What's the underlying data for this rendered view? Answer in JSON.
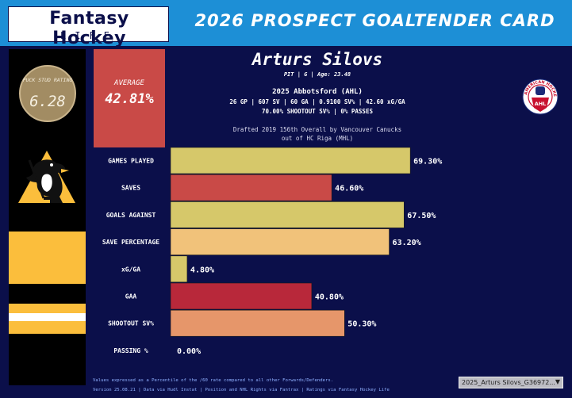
{
  "header": {
    "logo_top": "Fantasy Hockey",
    "logo_bottom": "LIFE",
    "title": "2026 PROSPECT GOALTENDER CARD"
  },
  "rating": {
    "label": "PUCK STUD RATING",
    "value": "6.28",
    "color": "#a28c63"
  },
  "average": {
    "label": "AVERAGE",
    "value": "42.81%",
    "color": "#c94a47"
  },
  "player": {
    "name": "Arturs Silovs",
    "meta": "PIT | G | Age: 23.48",
    "season_title": "2025 Abbotsford (AHL)",
    "season_line_1": "26 GP | 607 SV | 60 GA | 0.9100 SV% | 42.60 xG/GA",
    "season_line_2": "70.00% SHOOTOUT SV% | 0% PASSES",
    "draft_line_1": "Drafted 2019 156th Overall by Vancouver Canucks",
    "draft_line_2": "out of HC Riga (MHL)"
  },
  "team": {
    "logo_icon": "penguins-logo-icon",
    "primary_color": "#fbbe3c",
    "secondary_color": "#000000"
  },
  "league": {
    "logo_icon": "ahl-logo-icon",
    "ring_text": "AMERICAN HOCKEY LEAGUE",
    "badge": "AHL"
  },
  "chart_data": {
    "type": "bar",
    "orientation": "horizontal",
    "categories": [
      "GAMES PLAYED",
      "SAVES",
      "GOALS AGAINST",
      "SAVE PERCENTAGE",
      "xG/GA",
      "GAA",
      "SHOOTOUT SV%",
      "PASSING %"
    ],
    "values": [
      69.3,
      46.6,
      67.5,
      63.2,
      4.8,
      40.8,
      50.3,
      0.0
    ],
    "labels": [
      "69.30%",
      "46.60%",
      "67.50%",
      "63.20%",
      "4.80%",
      "40.80%",
      "50.30%",
      "0.00%"
    ],
    "colors": [
      "#d6c86a",
      "#c94a47",
      "#d6c86a",
      "#f1c27a",
      "#d6c86a",
      "#b8283a",
      "#e6966a",
      "#d6c86a"
    ],
    "xlim": [
      0,
      100
    ],
    "legend": "none",
    "grid": false
  },
  "footer": {
    "note_1": "Values expressed as a Percentile of the /60 rate compared to all other Forwards/Defenders.",
    "note_2": "Version 25.08.21 | Data via Hudl Instat | Position and NHL Rights via Fantrax | Ratings via Fantasy Hockey Life"
  },
  "sheet_selector": {
    "value": "2025_Arturs Silovs_G36972..."
  }
}
